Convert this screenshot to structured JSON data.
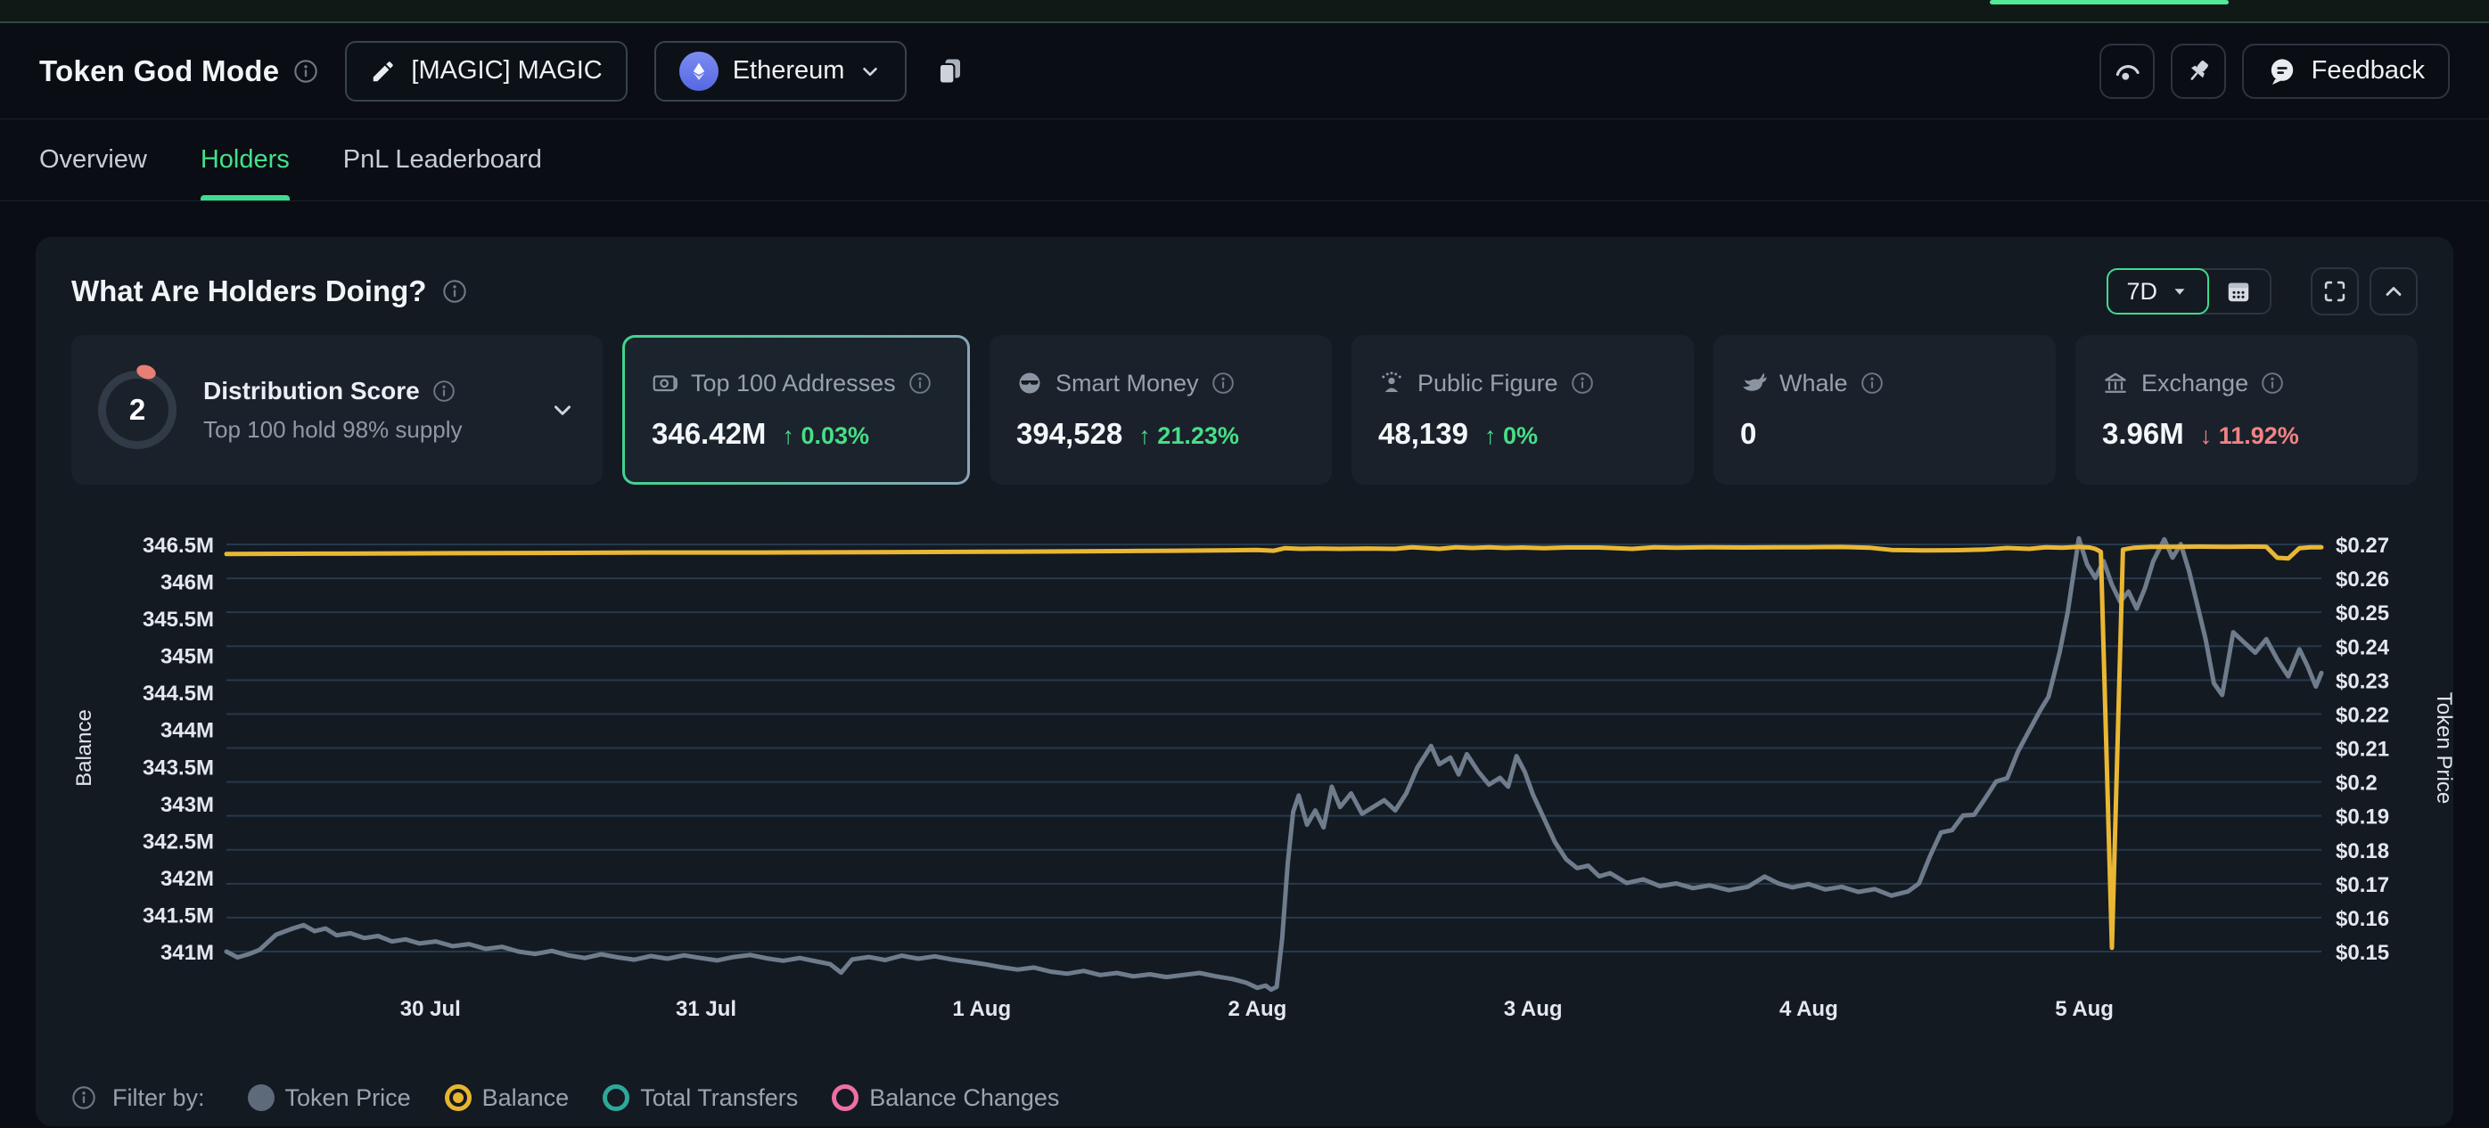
{
  "header": {
    "title": "Token God Mode",
    "token_label": "[MAGIC] MAGIC",
    "chain_label": "Ethereum",
    "feedback_label": "Feedback"
  },
  "tabs": [
    {
      "label": "Overview",
      "active": false
    },
    {
      "label": "Holders",
      "active": true
    },
    {
      "label": "PnL Leaderboard",
      "active": false
    }
  ],
  "panel": {
    "title": "What Are Holders Doing?",
    "range_label": "7D"
  },
  "stat_cards": [
    {
      "type": "score",
      "score": "2",
      "label": "Distribution Score",
      "sublabel": "Top 100 hold 98% supply"
    },
    {
      "icon": "banknote-icon",
      "label": "Top 100 Addresses",
      "value": "346.42M",
      "change": "↑ 0.03%",
      "dir": "up",
      "selected": true
    },
    {
      "icon": "smart-money-icon",
      "label": "Smart Money",
      "value": "394,528",
      "change": "↑ 21.23%",
      "dir": "up",
      "selected": false
    },
    {
      "icon": "public-figure-icon",
      "label": "Public Figure",
      "value": "48,139",
      "change": "↑ 0%",
      "dir": "up",
      "selected": false
    },
    {
      "icon": "whale-icon",
      "label": "Whale",
      "value": "0",
      "change": "",
      "dir": null,
      "selected": false
    },
    {
      "icon": "exchange-icon",
      "label": "Exchange",
      "value": "3.96M",
      "change": "↓ 11.92%",
      "dir": "down",
      "selected": false
    }
  ],
  "filter_bar": {
    "label": "Filter by:",
    "items": [
      {
        "label": "Token Price",
        "style": "filled",
        "color": "#5d6a79"
      },
      {
        "label": "Balance",
        "style": "selected",
        "color": "#e7b52f"
      },
      {
        "label": "Total Transfers",
        "style": "ring",
        "color": "#2ea89a"
      },
      {
        "label": "Balance Changes",
        "style": "ring",
        "color": "#ee6fa4"
      }
    ]
  },
  "colors": {
    "accent_green": "#3ddc8e",
    "up_green": "#47de87",
    "down_red": "#f08484",
    "balance_line": "#e9b733",
    "price_line": "#6e7c8c",
    "gridline": "rgba(86,140,190,0.28)"
  },
  "chart_data": {
    "type": "line",
    "title": "What Are Holders Doing?",
    "x_range": [
      -0.74,
      6.86
    ],
    "x_tick_positions": [
      0,
      1,
      2,
      3,
      4,
      5,
      6
    ],
    "x_tick_labels": [
      "30 Jul",
      "31 Jul",
      "1 Aug",
      "2 Aug",
      "3 Aug",
      "4 Aug",
      "5 Aug"
    ],
    "grid": "horizontal",
    "legend_position": "bottom",
    "y_left": {
      "title": "Balance",
      "range": [
        341,
        346.5
      ],
      "ticks": [
        "346.5M",
        "346M",
        "345.5M",
        "345M",
        "344.5M",
        "344M",
        "343.5M",
        "343M",
        "342.5M",
        "342M",
        "341.5M",
        "341M"
      ]
    },
    "y_right": {
      "title": "Token Price",
      "range": [
        0.15,
        0.27
      ],
      "ticks": [
        "$0.27",
        "$0.26",
        "$0.25",
        "$0.24",
        "$0.23",
        "$0.22",
        "$0.21",
        "$0.2",
        "$0.19",
        "$0.18",
        "$0.17",
        "$0.16",
        "$0.15"
      ]
    },
    "series": [
      {
        "name": "Token Price",
        "axis": "right",
        "color": "#6e7c8c",
        "unit": "USD",
        "points": [
          [
            -0.74,
            0.15
          ],
          [
            -0.7,
            0.1483
          ],
          [
            -0.66,
            0.1492
          ],
          [
            -0.62,
            0.1505
          ],
          [
            -0.56,
            0.155
          ],
          [
            -0.5,
            0.1568
          ],
          [
            -0.46,
            0.1578
          ],
          [
            -0.42,
            0.156
          ],
          [
            -0.38,
            0.1568
          ],
          [
            -0.34,
            0.1548
          ],
          [
            -0.29,
            0.1554
          ],
          [
            -0.24,
            0.154
          ],
          [
            -0.19,
            0.1546
          ],
          [
            -0.14,
            0.153
          ],
          [
            -0.09,
            0.1536
          ],
          [
            -0.04,
            0.1524
          ],
          [
            0.02,
            0.153
          ],
          [
            0.08,
            0.1516
          ],
          [
            0.14,
            0.1522
          ],
          [
            0.2,
            0.1508
          ],
          [
            0.26,
            0.1514
          ],
          [
            0.32,
            0.15
          ],
          [
            0.38,
            0.1493
          ],
          [
            0.44,
            0.1502
          ],
          [
            0.5,
            0.1489
          ],
          [
            0.56,
            0.1481
          ],
          [
            0.62,
            0.1492
          ],
          [
            0.68,
            0.1483
          ],
          [
            0.74,
            0.1476
          ],
          [
            0.8,
            0.1487
          ],
          [
            0.86,
            0.1479
          ],
          [
            0.92,
            0.1489
          ],
          [
            0.98,
            0.1481
          ],
          [
            1.04,
            0.1474
          ],
          [
            1.1,
            0.1484
          ],
          [
            1.16,
            0.149
          ],
          [
            1.22,
            0.148
          ],
          [
            1.28,
            0.1473
          ],
          [
            1.34,
            0.1481
          ],
          [
            1.4,
            0.1471
          ],
          [
            1.45,
            0.1463
          ],
          [
            1.49,
            0.1438
          ],
          [
            1.53,
            0.1477
          ],
          [
            1.59,
            0.1484
          ],
          [
            1.65,
            0.1475
          ],
          [
            1.71,
            0.1488
          ],
          [
            1.77,
            0.1479
          ],
          [
            1.83,
            0.1486
          ],
          [
            1.89,
            0.1477
          ],
          [
            1.95,
            0.147
          ],
          [
            2.01,
            0.1463
          ],
          [
            2.07,
            0.1454
          ],
          [
            2.13,
            0.1447
          ],
          [
            2.19,
            0.1453
          ],
          [
            2.25,
            0.1441
          ],
          [
            2.31,
            0.1435
          ],
          [
            2.37,
            0.1443
          ],
          [
            2.43,
            0.1431
          ],
          [
            2.49,
            0.1437
          ],
          [
            2.55,
            0.1427
          ],
          [
            2.61,
            0.1433
          ],
          [
            2.67,
            0.1425
          ],
          [
            2.73,
            0.1431
          ],
          [
            2.79,
            0.1437
          ],
          [
            2.85,
            0.1427
          ],
          [
            2.91,
            0.1419
          ],
          [
            2.96,
            0.1408
          ],
          [
            3.0,
            0.1393
          ],
          [
            3.03,
            0.14
          ],
          [
            3.05,
            0.1388
          ],
          [
            3.07,
            0.1396
          ],
          [
            3.09,
            0.154
          ],
          [
            3.11,
            0.176
          ],
          [
            3.13,
            0.1912
          ],
          [
            3.15,
            0.196
          ],
          [
            3.18,
            0.1874
          ],
          [
            3.21,
            0.1916
          ],
          [
            3.24,
            0.1866
          ],
          [
            3.27,
            0.1986
          ],
          [
            3.3,
            0.1926
          ],
          [
            3.34,
            0.1966
          ],
          [
            3.38,
            0.1906
          ],
          [
            3.42,
            0.1926
          ],
          [
            3.46,
            0.1946
          ],
          [
            3.5,
            0.1916
          ],
          [
            3.54,
            0.1966
          ],
          [
            3.58,
            0.2042
          ],
          [
            3.63,
            0.2106
          ],
          [
            3.66,
            0.2052
          ],
          [
            3.7,
            0.2072
          ],
          [
            3.73,
            0.2022
          ],
          [
            3.76,
            0.2082
          ],
          [
            3.8,
            0.2032
          ],
          [
            3.84,
            0.1992
          ],
          [
            3.88,
            0.2012
          ],
          [
            3.91,
            0.1986
          ],
          [
            3.94,
            0.2076
          ],
          [
            3.97,
            0.203
          ],
          [
            4.0,
            0.1962
          ],
          [
            4.04,
            0.1892
          ],
          [
            4.08,
            0.1822
          ],
          [
            4.12,
            0.1772
          ],
          [
            4.16,
            0.1746
          ],
          [
            4.2,
            0.1753
          ],
          [
            4.24,
            0.1722
          ],
          [
            4.28,
            0.1731
          ],
          [
            4.34,
            0.1702
          ],
          [
            4.4,
            0.1713
          ],
          [
            4.46,
            0.1693
          ],
          [
            4.52,
            0.1701
          ],
          [
            4.58,
            0.1687
          ],
          [
            4.64,
            0.1695
          ],
          [
            4.71,
            0.1681
          ],
          [
            4.78,
            0.1691
          ],
          [
            4.84,
            0.1721
          ],
          [
            4.89,
            0.1701
          ],
          [
            4.94,
            0.1689
          ],
          [
            5.0,
            0.1699
          ],
          [
            5.06,
            0.1683
          ],
          [
            5.12,
            0.1691
          ],
          [
            5.18,
            0.1676
          ],
          [
            5.24,
            0.1684
          ],
          [
            5.3,
            0.1665
          ],
          [
            5.36,
            0.1677
          ],
          [
            5.4,
            0.1701
          ],
          [
            5.44,
            0.1781
          ],
          [
            5.48,
            0.1851
          ],
          [
            5.52,
            0.1858
          ],
          [
            5.56,
            0.1901
          ],
          [
            5.6,
            0.1903
          ],
          [
            5.64,
            0.1951
          ],
          [
            5.68,
            0.2001
          ],
          [
            5.72,
            0.2011
          ],
          [
            5.76,
            0.2091
          ],
          [
            5.8,
            0.2151
          ],
          [
            5.84,
            0.2211
          ],
          [
            5.87,
            0.2251
          ],
          [
            5.91,
            0.2381
          ],
          [
            5.94,
            0.2501
          ],
          [
            5.98,
            0.2718
          ],
          [
            6.01,
            0.2641
          ],
          [
            6.04,
            0.2601
          ],
          [
            6.07,
            0.2651
          ],
          [
            6.1,
            0.2581
          ],
          [
            6.13,
            0.2531
          ],
          [
            6.16,
            0.2561
          ],
          [
            6.19,
            0.2511
          ],
          [
            6.22,
            0.2571
          ],
          [
            6.25,
            0.2651
          ],
          [
            6.29,
            0.2715
          ],
          [
            6.32,
            0.2661
          ],
          [
            6.35,
            0.2701
          ],
          [
            6.38,
            0.2621
          ],
          [
            6.41,
            0.2521
          ],
          [
            6.44,
            0.2421
          ],
          [
            6.47,
            0.2291
          ],
          [
            6.5,
            0.2256
          ],
          [
            6.54,
            0.2441
          ],
          [
            6.58,
            0.2411
          ],
          [
            6.62,
            0.2381
          ],
          [
            6.66,
            0.2421
          ],
          [
            6.7,
            0.2361
          ],
          [
            6.74,
            0.2311
          ],
          [
            6.78,
            0.2391
          ],
          [
            6.81,
            0.2341
          ],
          [
            6.84,
            0.2281
          ],
          [
            6.86,
            0.2321
          ]
        ]
      },
      {
        "name": "Balance",
        "axis": "left",
        "color": "#e9b733",
        "unit": "M tokens",
        "points": [
          [
            -0.74,
            346.37
          ],
          [
            -0.4,
            346.375
          ],
          [
            0.0,
            346.38
          ],
          [
            0.4,
            346.385
          ],
          [
            0.8,
            346.39
          ],
          [
            1.2,
            346.39
          ],
          [
            1.6,
            346.395
          ],
          [
            2.0,
            346.4
          ],
          [
            2.3,
            346.405
          ],
          [
            2.5,
            346.41
          ],
          [
            2.7,
            346.415
          ],
          [
            2.9,
            346.42
          ],
          [
            3.0,
            346.425
          ],
          [
            3.06,
            346.415
          ],
          [
            3.1,
            346.45
          ],
          [
            3.16,
            346.44
          ],
          [
            3.22,
            346.445
          ],
          [
            3.3,
            346.44
          ],
          [
            3.4,
            346.445
          ],
          [
            3.5,
            346.44
          ],
          [
            3.56,
            346.462
          ],
          [
            3.62,
            346.45
          ],
          [
            3.66,
            346.44
          ],
          [
            3.72,
            346.462
          ],
          [
            3.78,
            346.452
          ],
          [
            3.84,
            346.46
          ],
          [
            3.9,
            346.452
          ],
          [
            3.96,
            346.458
          ],
          [
            4.04,
            346.45
          ],
          [
            4.12,
            346.458
          ],
          [
            4.24,
            346.458
          ],
          [
            4.36,
            346.44
          ],
          [
            4.44,
            346.462
          ],
          [
            4.52,
            346.455
          ],
          [
            4.64,
            346.46
          ],
          [
            4.76,
            346.458
          ],
          [
            4.9,
            346.462
          ],
          [
            5.0,
            346.462
          ],
          [
            5.12,
            346.465
          ],
          [
            5.22,
            346.455
          ],
          [
            5.3,
            346.425
          ],
          [
            5.42,
            346.418
          ],
          [
            5.54,
            346.422
          ],
          [
            5.64,
            346.43
          ],
          [
            5.72,
            346.452
          ],
          [
            5.8,
            346.44
          ],
          [
            5.86,
            346.462
          ],
          [
            5.92,
            346.455
          ],
          [
            5.98,
            346.468
          ],
          [
            6.02,
            346.458
          ],
          [
            6.04,
            346.44
          ],
          [
            6.06,
            346.4
          ],
          [
            6.1,
            341.05
          ],
          [
            6.14,
            346.43
          ],
          [
            6.18,
            346.455
          ],
          [
            6.24,
            346.468
          ],
          [
            6.32,
            346.468
          ],
          [
            6.42,
            346.47
          ],
          [
            6.52,
            346.468
          ],
          [
            6.6,
            346.47
          ],
          [
            6.66,
            346.468
          ],
          [
            6.7,
            346.32
          ],
          [
            6.74,
            346.31
          ],
          [
            6.78,
            346.45
          ],
          [
            6.82,
            346.462
          ],
          [
            6.86,
            346.462
          ]
        ]
      }
    ]
  }
}
